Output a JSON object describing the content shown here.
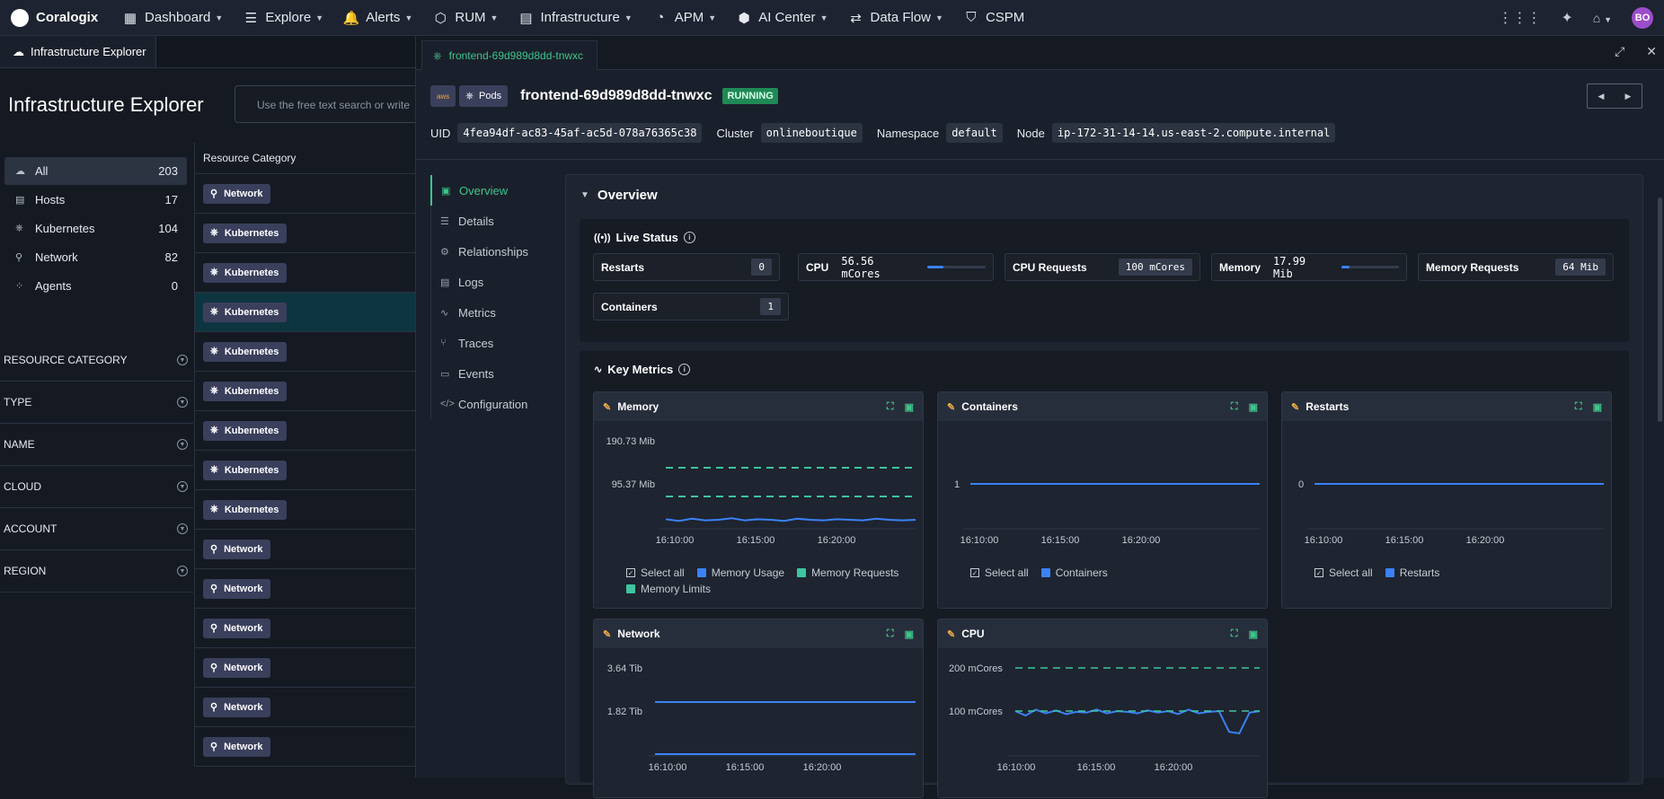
{
  "app": {
    "brand": "Coralogix",
    "user_initials": "BO"
  },
  "nav": [
    {
      "label": "Dashboard",
      "icon": "dashboard-icon"
    },
    {
      "label": "Explore",
      "icon": "explore-icon"
    },
    {
      "label": "Alerts",
      "icon": "bell-icon"
    },
    {
      "label": "RUM",
      "icon": "rum-icon"
    },
    {
      "label": "Infrastructure",
      "icon": "server-icon"
    },
    {
      "label": "APM",
      "icon": "gauge-icon"
    },
    {
      "label": "AI Center",
      "icon": "ai-icon"
    },
    {
      "label": "Data Flow",
      "icon": "dataflow-icon"
    },
    {
      "label": "CSPM",
      "icon": "shield-icon"
    }
  ],
  "left": {
    "tab": "Infrastructure Explorer",
    "title": "Infrastructure Explorer",
    "search_placeholder": "Use the free text search or write",
    "categories": [
      {
        "label": "All",
        "count": "203",
        "icon": "cloud-icon"
      },
      {
        "label": "Hosts",
        "count": "17",
        "icon": "host-icon"
      },
      {
        "label": "Kubernetes",
        "count": "104",
        "icon": "kubernetes-icon"
      },
      {
        "label": "Network",
        "count": "82",
        "icon": "network-icon"
      },
      {
        "label": "Agents",
        "count": "0",
        "icon": "agents-icon"
      }
    ],
    "filters": [
      "RESOURCE CATEGORY",
      "TYPE",
      "NAME",
      "CLOUD",
      "ACCOUNT",
      "REGION"
    ],
    "table_header": "Resource Category",
    "rows": [
      "Network",
      "Kubernetes",
      "Kubernetes",
      "Kubernetes",
      "Kubernetes",
      "Kubernetes",
      "Kubernetes",
      "Kubernetes",
      "Kubernetes",
      "Network",
      "Network",
      "Network",
      "Network",
      "Network",
      "Network"
    ]
  },
  "drawer": {
    "tab": "frontend-69d989d8dd-tnwxc",
    "kind": "Pods",
    "name": "frontend-69d989d8dd-tnwxc",
    "status": "RUNNING",
    "meta": [
      {
        "label": "UID",
        "value": "4fea94df-ac83-45af-ac5d-078a76365c38"
      },
      {
        "label": "Cluster",
        "value": "onlineboutique"
      },
      {
        "label": "Namespace",
        "value": "default"
      },
      {
        "label": "Node",
        "value": "ip-172-31-14-14.us-east-2.compute.internal"
      }
    ],
    "side_nav": [
      {
        "label": "Overview",
        "icon": "overview-icon"
      },
      {
        "label": "Details",
        "icon": "list-icon"
      },
      {
        "label": "Relationships",
        "icon": "relationships-icon"
      },
      {
        "label": "Logs",
        "icon": "logs-icon"
      },
      {
        "label": "Metrics",
        "icon": "metrics-icon"
      },
      {
        "label": "Traces",
        "icon": "traces-icon"
      },
      {
        "label": "Events",
        "icon": "calendar-icon"
      },
      {
        "label": "Configuration",
        "icon": "code-icon"
      }
    ],
    "overview_title": "Overview",
    "live_status": {
      "title": "Live Status",
      "restarts_label": "Restarts",
      "restarts": "0",
      "cpu_label": "CPU",
      "cpu": "56.56 mCores",
      "cpu_fill": 0.28,
      "cpu_req_label": "CPU Requests",
      "cpu_req": "100 mCores",
      "mem_label": "Memory",
      "mem": "17.99 Mib",
      "mem_fill": 0.14,
      "mem_req_label": "Memory Requests",
      "mem_req": "64 Mib",
      "containers_label": "Containers",
      "containers": "1"
    },
    "key_metrics_title": "Key Metrics",
    "select_all": "Select all",
    "colors": {
      "blue": "#3b82f6",
      "teal": "#3ec4a0",
      "green": "#3ec48a"
    }
  },
  "chart_data": [
    {
      "type": "line",
      "title": "Memory",
      "x_ticks": [
        "16:10:00",
        "16:15:00",
        "16:20:00"
      ],
      "y_ticks": [
        "190.73 Mib",
        "95.37 Mib"
      ],
      "legend": [
        "Memory Usage",
        "Memory Requests",
        "Memory Limits"
      ],
      "series": [
        {
          "name": "Memory Usage",
          "values": [
            18.1,
            17.8,
            18.2,
            17.9,
            18.0,
            18.3,
            17.9,
            18.1,
            18.0,
            17.8,
            18.2,
            18.0,
            17.9,
            18.1,
            18.0,
            17.9,
            18.2,
            18.0,
            17.9,
            18.0
          ]
        },
        {
          "name": "Memory Requests",
          "values": [
            64,
            64,
            64,
            64,
            64,
            64,
            64,
            64,
            64,
            64,
            64,
            64,
            64,
            64,
            64,
            64,
            64,
            64,
            64,
            64
          ]
        },
        {
          "name": "Memory Limits",
          "values": [
            128,
            128,
            128,
            128,
            128,
            128,
            128,
            128,
            128,
            128,
            128,
            128,
            128,
            128,
            128,
            128,
            128,
            128,
            128,
            128
          ]
        }
      ]
    },
    {
      "type": "line",
      "title": "Containers",
      "x_ticks": [
        "16:10:00",
        "16:15:00",
        "16:20:00"
      ],
      "y_ticks": [
        "1"
      ],
      "legend": [
        "Containers"
      ],
      "series": [
        {
          "name": "Containers",
          "values": [
            1,
            1,
            1,
            1,
            1,
            1,
            1,
            1,
            1,
            1
          ]
        }
      ]
    },
    {
      "type": "line",
      "title": "Restarts",
      "x_ticks": [
        "16:10:00",
        "16:15:00",
        "16:20:00"
      ],
      "y_ticks": [
        "0"
      ],
      "legend": [
        "Restarts"
      ],
      "series": [
        {
          "name": "Restarts",
          "values": [
            0,
            0,
            0,
            0,
            0,
            0,
            0,
            0,
            0,
            0
          ]
        }
      ]
    },
    {
      "type": "line",
      "title": "Network",
      "x_ticks": [
        "16:10:00",
        "16:15:00",
        "16:20:00"
      ],
      "y_ticks": [
        "3.64 Tib",
        "1.82 Tib"
      ],
      "series": [
        {
          "values": [
            2.8,
            2.8,
            2.8,
            2.8,
            2.8,
            2.8,
            2.8,
            2.8,
            2.8,
            2.8
          ]
        },
        {
          "values": [
            0,
            0,
            0,
            0,
            0,
            0,
            0,
            0,
            0,
            0
          ]
        }
      ]
    },
    {
      "type": "line",
      "title": "CPU",
      "x_ticks": [
        "16:10:00",
        "16:15:00",
        "16:20:00"
      ],
      "y_ticks": [
        "200 mCores",
        "100 mCores"
      ],
      "series": [
        {
          "values": [
            58,
            52,
            60,
            55,
            59,
            54,
            57,
            56,
            60,
            55,
            58,
            57,
            55,
            59,
            56,
            58,
            54,
            60,
            55,
            57,
            58,
            30,
            28,
            56,
            58
          ]
        },
        {
          "values": [
            100,
            100,
            100,
            100,
            100,
            100,
            100,
            100,
            100,
            100,
            100,
            100,
            100,
            100,
            100,
            100,
            100,
            100,
            100,
            100,
            100,
            100,
            100,
            100,
            100
          ]
        },
        {
          "values": [
            200,
            200,
            200,
            200,
            200,
            200,
            200,
            200,
            200,
            200,
            200,
            200,
            200,
            200,
            200,
            200,
            200,
            200,
            200,
            200,
            200,
            200,
            200,
            200,
            200
          ]
        }
      ]
    }
  ]
}
